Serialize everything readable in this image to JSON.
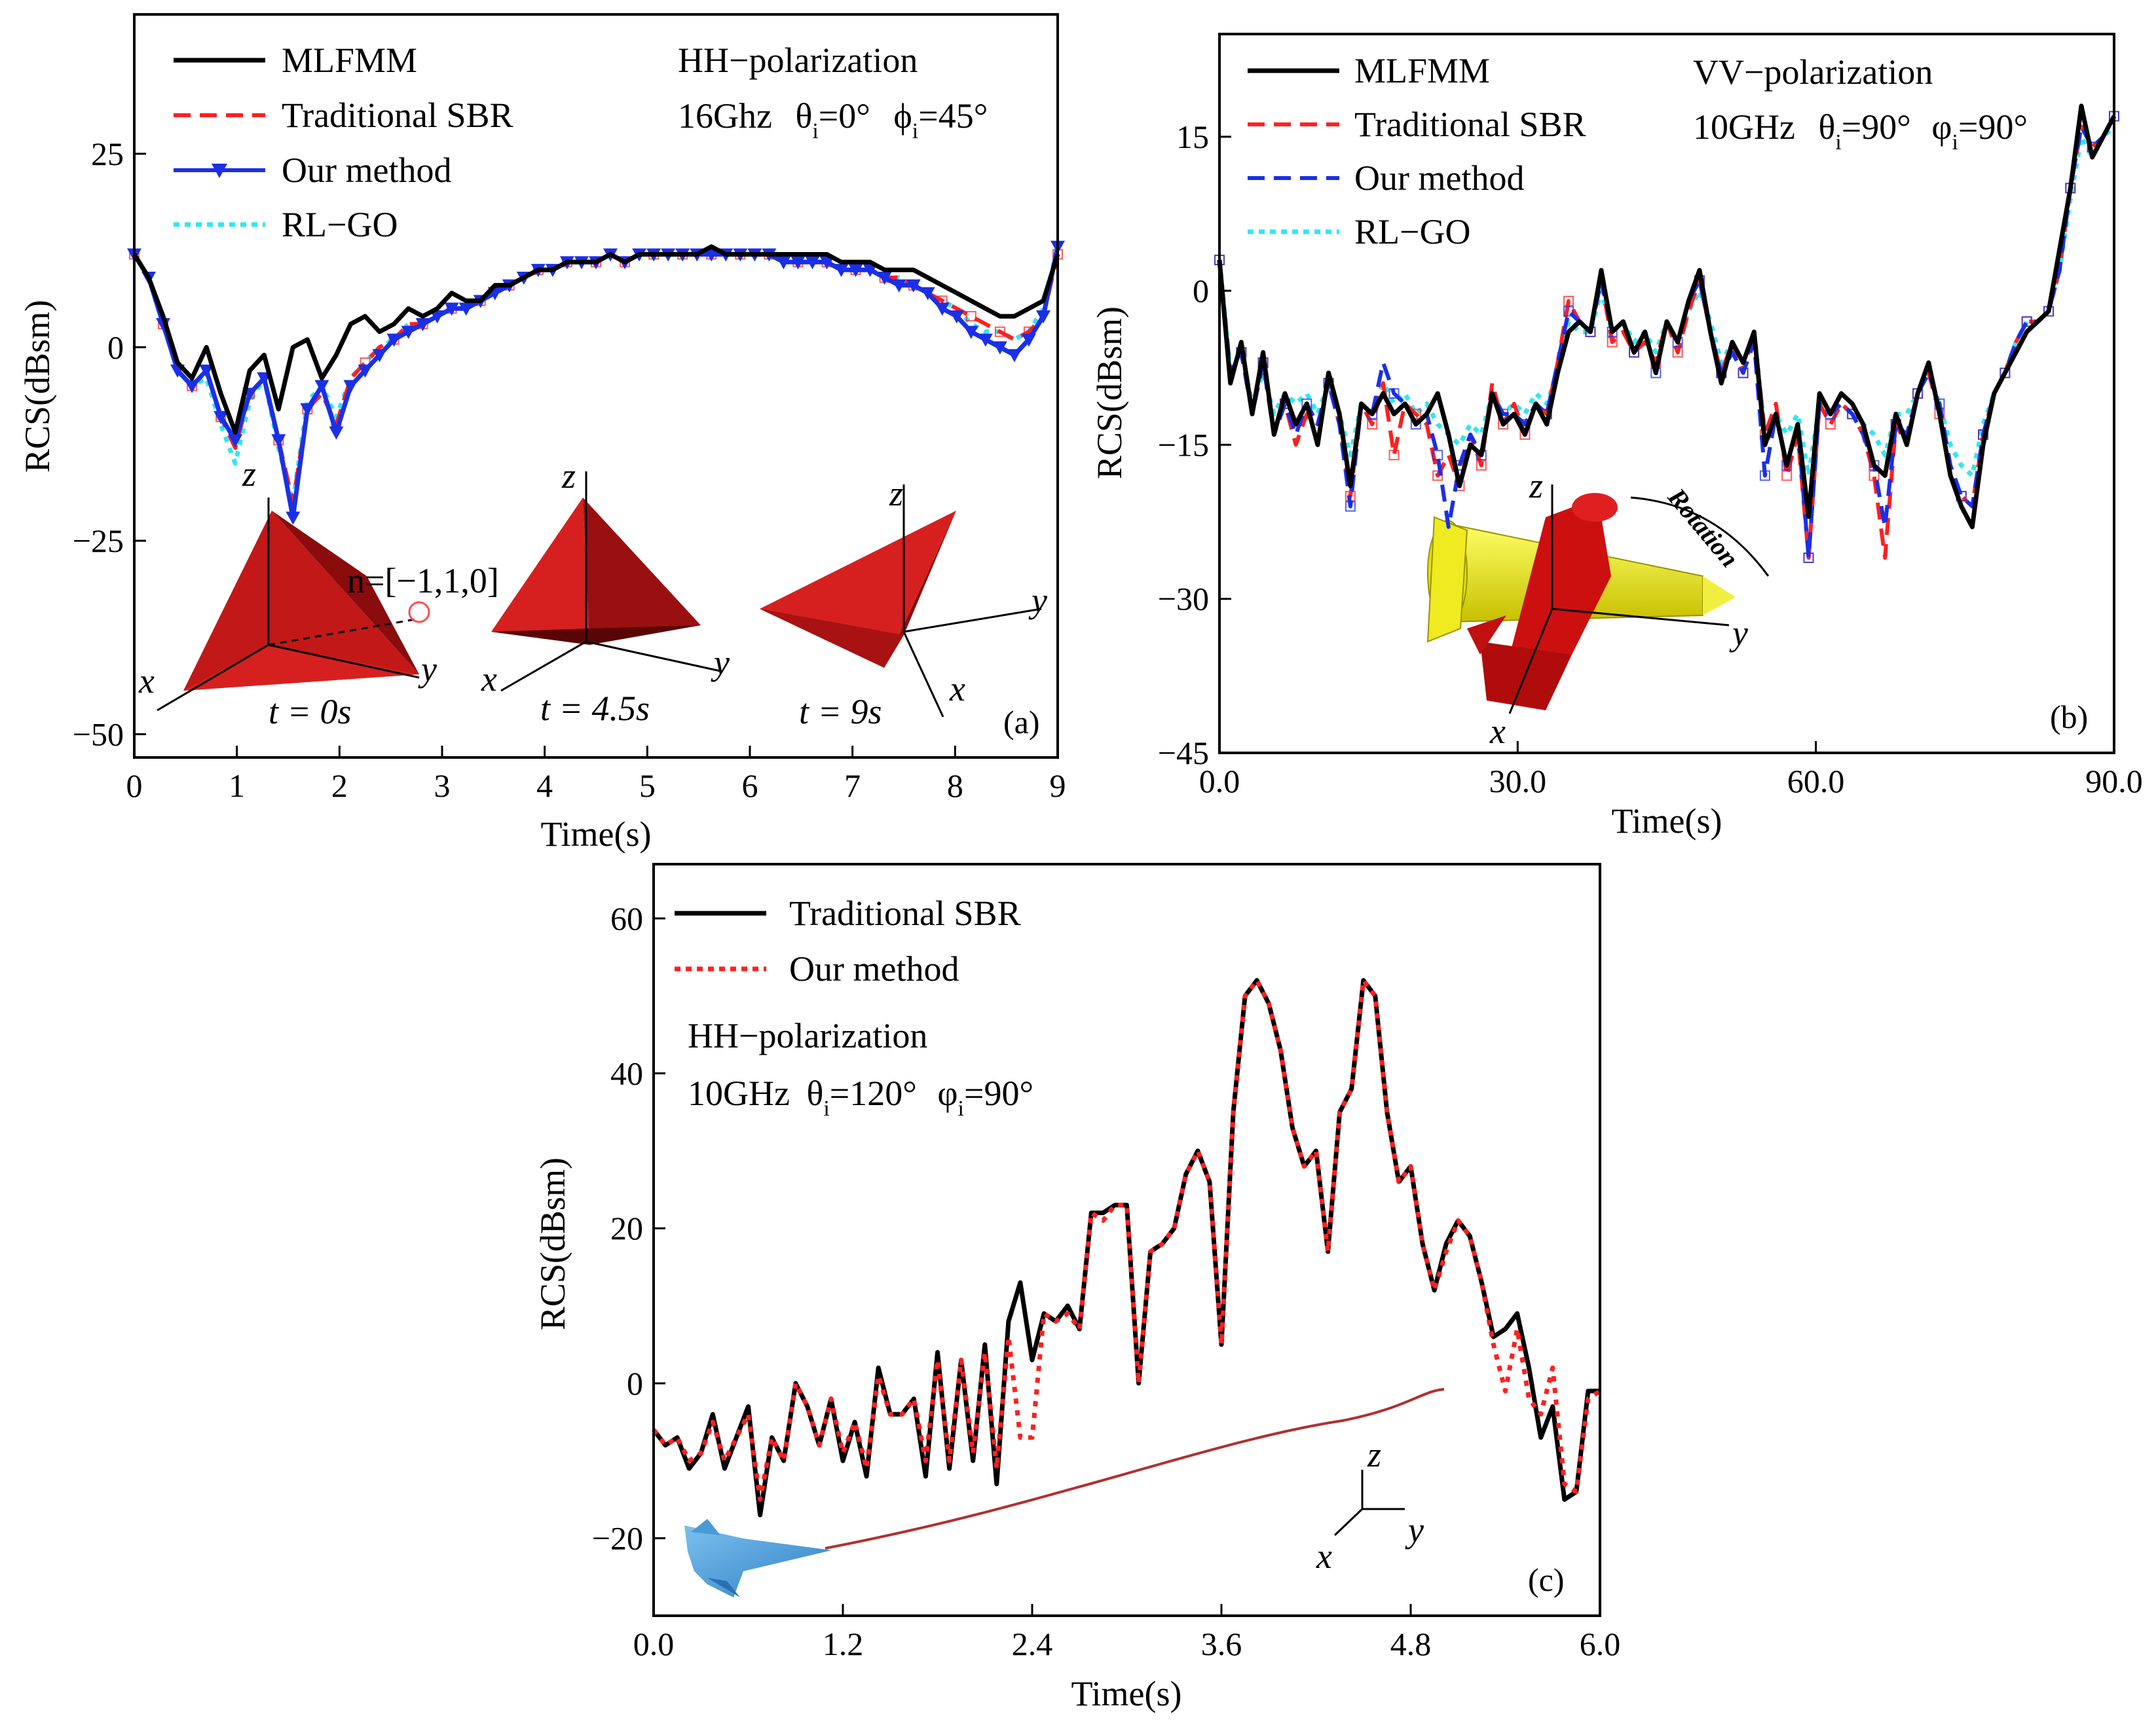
{
  "figure": {
    "panels": [
      {
        "id": "a",
        "panel_label": "(a)",
        "xlabel": "Time(s)",
        "ylabel": "RCS(dBsm)",
        "xlim": [
          0,
          9
        ],
        "ylim": [
          -53,
          43
        ],
        "xticks": [
          0,
          1,
          2,
          3,
          4,
          5,
          6,
          7,
          8,
          9
        ],
        "xtick_labels": [
          "0",
          "1",
          "2",
          "3",
          "4",
          "5",
          "6",
          "7",
          "8",
          "9"
        ],
        "yticks": [
          25,
          0,
          -25,
          -50
        ],
        "ytick_labels": [
          "25",
          "0",
          "−25",
          "−50"
        ],
        "annotation": {
          "line1": "HH−polarization",
          "freq": "16Ghz",
          "theta": "θ",
          "theta_sub": "i",
          "theta_val": "=0°",
          "phi": "ϕ",
          "phi_sub": "i",
          "phi_val": "=45°"
        },
        "normal_label": "n=[−1,1,0]",
        "snapshots": [
          "t = 0s",
          "t = 4.5s",
          "t = 9s"
        ],
        "axis_letters": {
          "x": "x",
          "y": "y",
          "z": "z"
        },
        "series": [
          {
            "name": "MLFMM",
            "color": "#000000",
            "style": "solid",
            "values": [
              12,
              9,
              4,
              -2,
              -4,
              0,
              -6,
              -11,
              -3,
              -1,
              -8,
              0,
              1,
              -4,
              -1,
              3,
              4,
              2,
              3,
              5,
              4,
              5,
              7,
              6,
              6,
              8,
              8,
              9,
              10,
              10,
              11,
              11,
              11,
              12,
              11,
              12,
              12,
              12,
              12,
              12,
              13,
              12,
              12,
              12,
              12,
              12,
              12,
              12,
              12,
              11,
              11,
              11,
              10,
              10,
              10,
              9,
              8,
              7,
              6,
              5,
              4,
              4,
              5,
              6,
              12
            ]
          },
          {
            "name": "Traditional SBR",
            "color": "#ff2020",
            "style": "dash",
            "values": [
              12,
              9,
              3,
              -3,
              -5,
              -3,
              -9,
              -13,
              -6,
              -4,
              -12,
              -20,
              -8,
              -6,
              -10,
              -4,
              -2,
              0,
              1,
              3,
              3,
              4,
              5,
              5,
              6,
              7,
              8,
              9,
              10,
              10,
              11,
              11,
              11,
              12,
              11,
              12,
              12,
              12,
              12,
              12,
              12,
              12,
              12,
              12,
              12,
              11,
              11,
              11,
              11,
              10,
              10,
              10,
              9,
              9,
              8,
              7,
              6,
              5,
              4,
              3,
              2,
              1,
              2,
              4,
              12
            ]
          },
          {
            "name": "Our method",
            "color": "#1a2fe8",
            "style": "solid-marker",
            "values": [
              12,
              9,
              3,
              -3,
              -5,
              -3,
              -9,
              -12,
              -6,
              -4,
              -12,
              -22,
              -8,
              -5,
              -11,
              -5,
              -3,
              -1,
              1,
              2,
              3,
              4,
              5,
              5,
              6,
              7,
              8,
              9,
              10,
              10,
              11,
              11,
              11,
              12,
              11,
              12,
              12,
              12,
              12,
              12,
              12,
              12,
              12,
              12,
              12,
              11,
              11,
              11,
              11,
              10,
              10,
              10,
              9,
              8,
              8,
              7,
              5,
              4,
              2,
              1,
              0,
              -1,
              1,
              4,
              13
            ]
          },
          {
            "name": "RL−GO",
            "color": "#33e6f2",
            "style": "dot",
            "values": [
              12,
              9,
              3,
              -3,
              -5,
              -4,
              -10,
              -15,
              -7,
              -4,
              -13,
              -20,
              -7,
              -5,
              -9,
              -4,
              -2,
              0,
              1,
              3,
              3,
              4,
              5,
              5,
              6,
              7,
              8,
              9,
              10,
              10,
              11,
              11,
              11,
              12,
              11,
              12,
              12,
              12,
              12,
              12,
              12,
              12,
              12,
              12,
              12,
              11,
              11,
              11,
              11,
              10,
              10,
              10,
              9,
              9,
              8,
              7,
              6,
              5,
              3,
              2,
              2,
              1,
              2,
              5,
              13
            ]
          }
        ]
      },
      {
        "id": "b",
        "panel_label": "(b)",
        "xlabel": "Time(s)",
        "ylabel": "RCS(dBsm)",
        "xlim": [
          0,
          90
        ],
        "ylim": [
          -45,
          25
        ],
        "xticks": [
          0,
          30,
          60,
          90
        ],
        "xtick_labels": [
          "0.0",
          "30.0",
          "60.0",
          "90.0"
        ],
        "yticks": [
          15,
          0,
          -15,
          -30,
          -45
        ],
        "ytick_labels": [
          "15",
          "0",
          "−15",
          "−30",
          "−45"
        ],
        "annotation": {
          "line1": "VV−polarization",
          "freq": "10GHz",
          "theta": "θ",
          "theta_sub": "i",
          "theta_val": "=90°",
          "phi": "φ",
          "phi_sub": "i",
          "phi_val": "=90°"
        },
        "rotation_label": "Rotation",
        "axis_letters": {
          "x": "x",
          "y": "y",
          "z": "z"
        },
        "series": [
          {
            "name": "MLFMM",
            "color": "#000000",
            "style": "solid",
            "values": [
              3,
              -9,
              -5,
              -12,
              -6,
              -14,
              -10,
              -13,
              -11,
              -15,
              -8,
              -12,
              -19,
              -11,
              -12,
              -10,
              -12,
              -11,
              -13,
              -12,
              -10,
              -14,
              -19,
              -15,
              -16,
              -10,
              -13,
              -12,
              -14,
              -11,
              -13,
              -8,
              -4,
              -3,
              -4,
              2,
              -4,
              -3,
              -6,
              -4,
              -8,
              -3,
              -5,
              -1,
              2,
              -4,
              -9,
              -5,
              -7,
              -4,
              -15,
              -12,
              -17,
              -13,
              -22,
              -10,
              -12,
              -10,
              -11,
              -13,
              -17,
              -18,
              -12,
              -15,
              -10,
              -7,
              -12,
              -18,
              -21,
              -23,
              -15,
              -10,
              -8,
              -6,
              -4,
              -3,
              -2,
              4,
              10,
              18,
              13,
              15,
              17
            ]
          },
          {
            "name": "Traditional SBR",
            "color": "#ff2020",
            "style": "dash",
            "values": [
              3,
              -8,
              -6,
              -12,
              -7,
              -14,
              -11,
              -15,
              -12,
              -13,
              -9,
              -13,
              -20,
              -11,
              -13,
              -9,
              -16,
              -11,
              -12,
              -13,
              -18,
              -16,
              -19,
              -14,
              -17,
              -9,
              -13,
              -11,
              -14,
              -11,
              -12,
              -7,
              -1,
              -3,
              -4,
              1,
              -5,
              -4,
              -6,
              -5,
              -7,
              -3,
              -6,
              -2,
              1,
              -4,
              -8,
              -5,
              -8,
              -4,
              -14,
              -11,
              -18,
              -14,
              -26,
              -11,
              -13,
              -11,
              -12,
              -14,
              -18,
              -26,
              -13,
              -15,
              -10,
              -8,
              -12,
              -18,
              -20,
              -21,
              -14,
              -10,
              -8,
              -5,
              -3,
              -3,
              -2,
              2,
              10,
              16,
              14,
              15,
              17
            ]
          },
          {
            "name": "Our method",
            "color": "#1a2fe8",
            "style": "dash",
            "values": [
              3,
              -8,
              -6,
              -12,
              -7,
              -14,
              -11,
              -14,
              -11,
              -13,
              -9,
              -13,
              -21,
              -11,
              -12,
              -7,
              -10,
              -11,
              -13,
              -12,
              -16,
              -23,
              -17,
              -14,
              -16,
              -10,
              -12,
              -12,
              -13,
              -11,
              -12,
              -7,
              -2,
              -3,
              -4,
              1,
              -4,
              -3,
              -6,
              -4,
              -8,
              -3,
              -5,
              -1,
              1,
              -4,
              -8,
              -6,
              -8,
              -5,
              -18,
              -12,
              -17,
              -13,
              -26,
              -11,
              -12,
              -11,
              -12,
              -14,
              -17,
              -23,
              -13,
              -14,
              -10,
              -8,
              -11,
              -17,
              -20,
              -21,
              -14,
              -10,
              -8,
              -5,
              -3,
              -3,
              -2,
              2,
              10,
              16,
              14,
              15,
              17
            ]
          },
          {
            "name": "RL−GO",
            "color": "#33e6f2",
            "style": "dot",
            "values": [
              3,
              -8,
              -6,
              -11,
              -8,
              -12,
              -10,
              -11,
              -10,
              -12,
              -9,
              -12,
              -16,
              -11,
              -12,
              -9,
              -11,
              -10,
              -12,
              -11,
              -13,
              -14,
              -15,
              -13,
              -14,
              -10,
              -12,
              -11,
              -12,
              -10,
              -11,
              -8,
              -3,
              -4,
              -4,
              0,
              -4,
              -3,
              -5,
              -4,
              -6,
              -3,
              -5,
              -2,
              0,
              -3,
              -7,
              -5,
              -7,
              -4,
              -14,
              -12,
              -14,
              -12,
              -18,
              -11,
              -12,
              -11,
              -12,
              -13,
              -14,
              -16,
              -12,
              -12,
              -10,
              -8,
              -11,
              -15,
              -17,
              -18,
              -13,
              -10,
              -8,
              -5,
              -3,
              -3,
              -2,
              2,
              9,
              15,
              13,
              15,
              16
            ]
          }
        ]
      },
      {
        "id": "c",
        "panel_label": "(c)",
        "xlabel": "Time(s)",
        "ylabel": "RCS(dBsm)",
        "xlim": [
          0,
          6
        ],
        "ylim": [
          -30,
          67
        ],
        "xticks": [
          0,
          1.2,
          2.4,
          3.6,
          4.8,
          6.0
        ],
        "xtick_labels": [
          "0.0",
          "1.2",
          "2.4",
          "3.6",
          "4.8",
          "6.0"
        ],
        "yticks": [
          60,
          40,
          20,
          0,
          -20
        ],
        "ytick_labels": [
          "60",
          "40",
          "20",
          "0",
          "−20"
        ],
        "annotation": {
          "line1": "HH−polarization",
          "freq": "10GHz",
          "theta": "θ",
          "theta_sub": "i",
          "theta_val": "=120°",
          "phi": "φ",
          "phi_sub": "i",
          "phi_val": "=90°"
        },
        "axis_letters": {
          "x": "x",
          "y": "y",
          "z": "z"
        },
        "series": [
          {
            "name": "Traditional SBR",
            "color": "#000000",
            "style": "solid",
            "values": [
              -6,
              -8,
              -7,
              -11,
              -9,
              -4,
              -11,
              -7,
              -3,
              -17,
              -7,
              -10,
              0,
              -3,
              -8,
              -2,
              -10,
              -5,
              -12,
              2,
              -4,
              -4,
              -2,
              -12,
              4,
              -11,
              3,
              -10,
              5,
              -13,
              8,
              13,
              3,
              9,
              8,
              10,
              7,
              22,
              22,
              23,
              23,
              0,
              17,
              18,
              20,
              27,
              30,
              26,
              5,
              35,
              50,
              52,
              49,
              43,
              33,
              28,
              30,
              17,
              35,
              38,
              52,
              50,
              35,
              26,
              28,
              18,
              12,
              18,
              21,
              19,
              13,
              6,
              7,
              9,
              2,
              -7,
              -3,
              -15,
              -14,
              -1,
              -1
            ]
          },
          {
            "name": "Our method",
            "color": "#ff2020",
            "style": "dot",
            "values": [
              -6,
              -8,
              -7,
              -10,
              -9,
              -5,
              -10,
              -7,
              -4,
              -15,
              -7,
              -10,
              0,
              -3,
              -8,
              -2,
              -9,
              -5,
              -11,
              1,
              -4,
              -4,
              -2,
              -10,
              3,
              -10,
              3,
              -9,
              4,
              -11,
              6,
              -7,
              -7,
              9,
              8,
              9,
              7,
              22,
              21,
              23,
              23,
              0,
              17,
              18,
              20,
              27,
              30,
              26,
              5,
              35,
              50,
              52,
              49,
              43,
              33,
              28,
              30,
              17,
              35,
              38,
              52,
              50,
              35,
              26,
              28,
              18,
              12,
              17,
              21,
              19,
              13,
              5,
              -1,
              7,
              -2,
              -4,
              2,
              -13,
              -14,
              -2,
              -1
            ]
          }
        ]
      }
    ]
  }
}
